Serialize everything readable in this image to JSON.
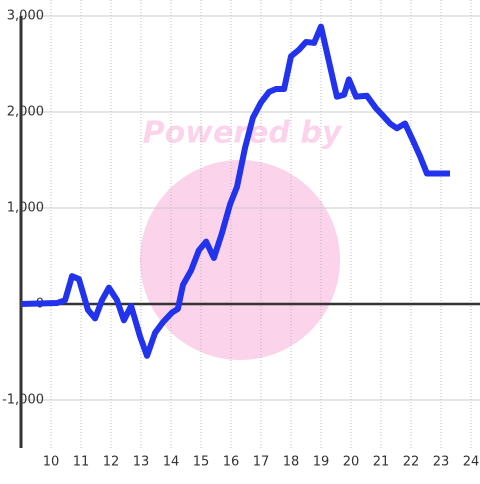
{
  "chart_data": {
    "type": "line",
    "watermark": "Powered by",
    "x": [
      9,
      10.2,
      10.47,
      10.7,
      10.93,
      11.23,
      11.47,
      11.7,
      11.93,
      12.2,
      12.43,
      12.67,
      12.97,
      13.2,
      13.47,
      13.73,
      14.03,
      14.23,
      14.4,
      14.67,
      14.93,
      15.17,
      15.43,
      15.7,
      15.97,
      16.2,
      16.47,
      16.73,
      17,
      17.27,
      17.5,
      17.77,
      18,
      18.27,
      18.5,
      18.77,
      19,
      19.27,
      19.53,
      19.77,
      19.93,
      20.17,
      20.53,
      20.83,
      21.07,
      21.3,
      21.53,
      21.8,
      22.07,
      22.3,
      22.53,
      23.3
    ],
    "series": [
      {
        "color": "#2233ee",
        "values": [
          0,
          10,
          40,
          290,
          260,
          -60,
          -150,
          40,
          170,
          40,
          -170,
          -20,
          -340,
          -540,
          -300,
          -190,
          -90,
          -50,
          200,
          350,
          560,
          650,
          480,
          740,
          1040,
          1220,
          1630,
          1940,
          2100,
          2210,
          2240,
          2240,
          2580,
          2650,
          2730,
          2720,
          2890,
          2520,
          2160,
          2180,
          2340,
          2160,
          2170,
          2040,
          1960,
          1880,
          1830,
          1880,
          1700,
          1540,
          1360,
          1360
        ]
      }
    ],
    "xlim": [
      9,
      24.3
    ],
    "xticks": [
      10,
      11,
      12,
      13,
      14,
      15,
      16,
      17,
      18,
      19,
      20,
      21,
      22,
      23,
      24
    ],
    "ylim": [
      -1500,
      3167
    ],
    "yticks": [
      {
        "value": -1000,
        "label": "-1,000"
      },
      0,
      {
        "value": 1000,
        "label": "1,000"
      },
      {
        "value": 2000,
        "label": "2,000"
      },
      {
        "value": 3000,
        "label": "3,000"
      }
    ],
    "grid": true
  }
}
